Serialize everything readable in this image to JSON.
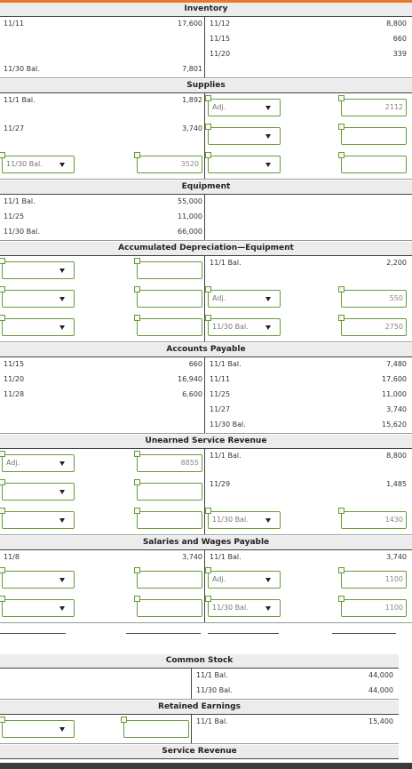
{
  "accounts": [
    {
      "title": "Inventory",
      "rows": [
        [
          "11/11",
          "17,600",
          "11/12",
          "8,800"
        ],
        [
          null,
          null,
          "11/15",
          "660"
        ],
        [
          null,
          null,
          "11/20",
          "339"
        ],
        [
          "11/30 Bal.",
          "7,801",
          null,
          null
        ]
      ]
    },
    {
      "title": "Supplies",
      "rows": [
        [
          "11/1 Bal.",
          "1,892",
          {
            "type": "select",
            "value": "Adj."
          },
          {
            "type": "input",
            "value": "2112"
          }
        ],
        [
          "11/27",
          "3,740",
          {
            "type": "select"
          },
          {
            "type": "input"
          }
        ],
        [
          {
            "type": "select",
            "value": "11/30 Bal."
          },
          {
            "type": "input",
            "value": "3520"
          },
          {
            "type": "select"
          },
          {
            "type": "input"
          }
        ]
      ]
    },
    {
      "title": "Equipment",
      "rows": [
        [
          "11/1 Bal.",
          "55,000",
          null,
          null
        ],
        [
          "11/25",
          "11,000",
          null,
          null
        ],
        [
          "11/30 Bal.",
          "66,000",
          null,
          null
        ]
      ]
    },
    {
      "title": "Accumulated Depreciation—Equipment",
      "rows": [
        [
          {
            "type": "select"
          },
          {
            "type": "input"
          },
          "11/1 Bal.",
          "2,200"
        ],
        [
          {
            "type": "select"
          },
          {
            "type": "input"
          },
          {
            "type": "select",
            "value": "Adj."
          },
          {
            "type": "input",
            "value": "550"
          }
        ],
        [
          {
            "type": "select"
          },
          {
            "type": "input"
          },
          {
            "type": "select",
            "value": "11/30 Bal."
          },
          {
            "type": "input",
            "value": "2750"
          }
        ]
      ]
    },
    {
      "title": "Accounts Payable",
      "rows": [
        [
          "11/15",
          "660",
          "11/1 Bal.",
          "7,480"
        ],
        [
          "11/20",
          "16,940",
          "11/11",
          "17,600"
        ],
        [
          "11/28",
          "6,600",
          "11/25",
          "11,000"
        ],
        [
          null,
          null,
          "11/27",
          "3,740"
        ],
        [
          null,
          null,
          "11/30 Bal.",
          "15,620"
        ]
      ]
    },
    {
      "title": "Unearned Service Revenue",
      "rows": [
        [
          {
            "type": "select",
            "value": "Adj."
          },
          {
            "type": "input",
            "value": "8855"
          },
          "11/1 Bal.",
          "8,800"
        ],
        [
          {
            "type": "select"
          },
          {
            "type": "input"
          },
          "11/29",
          "1,485"
        ],
        [
          {
            "type": "select"
          },
          {
            "type": "input"
          },
          {
            "type": "select",
            "value": "11/30 Bal."
          },
          {
            "type": "input",
            "value": "1430"
          }
        ]
      ]
    },
    {
      "title": "Salaries and Wages Payable",
      "rows": [
        [
          "11/8",
          "3,740",
          "11/1 Bal.",
          "3,740"
        ],
        [
          {
            "type": "select"
          },
          {
            "type": "input"
          },
          {
            "type": "select",
            "value": "Adj."
          },
          {
            "type": "input",
            "value": "1100"
          }
        ],
        [
          {
            "type": "select"
          },
          {
            "type": "input"
          },
          {
            "type": "select",
            "value": "11/30 Bal."
          },
          {
            "type": "input",
            "value": "1100"
          }
        ]
      ]
    },
    {
      "title": "Common Stock",
      "rows": [
        [
          null,
          null,
          "11/1 Bal.",
          "44,000"
        ],
        [
          null,
          null,
          "11/30 Bal.",
          "44,000"
        ]
      ]
    },
    {
      "title": "Retained Earnings",
      "rows": [
        [
          {
            "type": "select"
          },
          {
            "type": "input"
          },
          "11/1 Bal.",
          "15,400"
        ]
      ]
    },
    {
      "title": "Service Revenue",
      "rows": []
    }
  ]
}
